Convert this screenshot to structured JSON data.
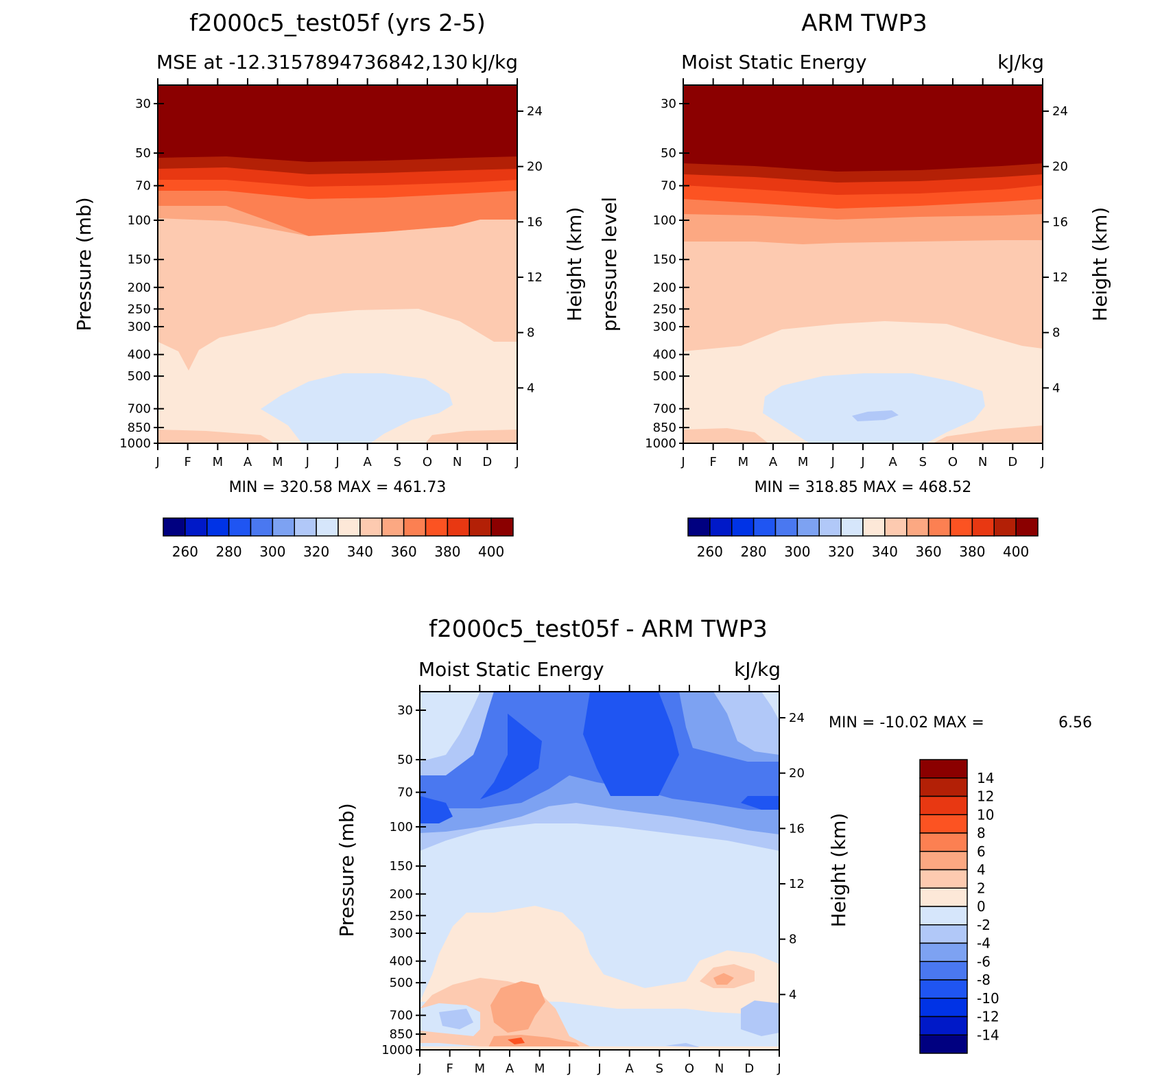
{
  "months": [
    "J",
    "F",
    "M",
    "A",
    "M",
    "J",
    "J",
    "A",
    "S",
    "O",
    "N",
    "D",
    "J"
  ],
  "chart_data": [
    {
      "type": "heatmap",
      "title": "f2000c5_test05f (yrs 2-5)",
      "subtitle_left": "MSE at -12.3157894736842,130",
      "subtitle_right": "kJ/kg",
      "ylabel": "Pressure (mb)",
      "ylabel_right": "Height (km)",
      "pressure_ticks": [
        "30",
        "50",
        "70",
        "100",
        "150",
        "200",
        "250",
        "300",
        "400",
        "500",
        "700",
        "850",
        "1000"
      ],
      "height_ticks": [
        "24",
        "20",
        "16",
        "12",
        "8",
        "4"
      ],
      "stats": "MIN = 320.58 MAX = 461.73",
      "colorbar_labels": [
        "260",
        "280",
        "300",
        "320",
        "340",
        "360",
        "380",
        "400"
      ],
      "bands_approx_kJkg": [
        {
          "level_hPa": 30,
          "value": 460
        },
        {
          "level_hPa": 70,
          "value": 385
        },
        {
          "level_hPa": 100,
          "value": 355
        },
        {
          "level_hPa": 200,
          "value": 345
        },
        {
          "level_hPa": 400,
          "value": 335
        },
        {
          "level_hPa": 700,
          "value": 325
        },
        {
          "level_hPa": 1000,
          "value": 340
        }
      ]
    },
    {
      "type": "heatmap",
      "title": "ARM TWP3",
      "subtitle_left": "Moist Static Energy",
      "subtitle_right": "kJ/kg",
      "ylabel": "pressure level",
      "ylabel_right": "Height (km)",
      "pressure_ticks": [
        "30",
        "50",
        "70",
        "100",
        "150",
        "200",
        "250",
        "300",
        "400",
        "500",
        "700",
        "850",
        "1000"
      ],
      "height_ticks": [
        "24",
        "20",
        "16",
        "12",
        "8",
        "4"
      ],
      "stats": "MIN = 318.85 MAX = 468.52",
      "colorbar_labels": [
        "260",
        "280",
        "300",
        "320",
        "340",
        "360",
        "380",
        "400"
      ],
      "bands_approx_kJkg": [
        {
          "level_hPa": 30,
          "value": 465
        },
        {
          "level_hPa": 70,
          "value": 385
        },
        {
          "level_hPa": 100,
          "value": 355
        },
        {
          "level_hPa": 200,
          "value": 345
        },
        {
          "level_hPa": 400,
          "value": 335
        },
        {
          "level_hPa": 700,
          "value": 325
        },
        {
          "level_hPa": 1000,
          "value": 340
        }
      ]
    },
    {
      "type": "heatmap",
      "title": "f2000c5_test05f - ARM TWP3",
      "subtitle_left": "Moist Static Energy",
      "subtitle_right": "kJ/kg",
      "ylabel": "Pressure (mb)",
      "ylabel_right": "Height (km)",
      "pressure_ticks": [
        "30",
        "50",
        "70",
        "100",
        "150",
        "200",
        "250",
        "300",
        "400",
        "500",
        "700",
        "850",
        "1000"
      ],
      "height_ticks": [
        "24",
        "20",
        "16",
        "12",
        "8",
        "4"
      ],
      "stats_label": "MIN = -10.02 MAX =",
      "stats_max": "6.56",
      "colorbar_labels": [
        "14",
        "12",
        "10",
        "8",
        "6",
        "4",
        "2",
        "0",
        "-2",
        "-4",
        "-6",
        "-8",
        "-10",
        "-12",
        "-14"
      ]
    }
  ],
  "palettes": {
    "absolute": [
      "#000080",
      "#0019c8",
      "#0033e6",
      "#1f55f2",
      "#4a78f0",
      "#7da2f2",
      "#b1c8f8",
      "#d6e6fb",
      "#fde8d8",
      "#fdcab0",
      "#fca882",
      "#fc8052",
      "#fc5322",
      "#e83812",
      "#b32006",
      "#8b0000"
    ],
    "diff": [
      "#8b0000",
      "#b32006",
      "#e83812",
      "#fc5322",
      "#fc8052",
      "#fca882",
      "#fdcab0",
      "#fde8d8",
      "#d6e6fb",
      "#b1c8f8",
      "#7da2f2",
      "#4a78f0",
      "#1f55f2",
      "#0033e6",
      "#0019c8",
      "#000080"
    ]
  }
}
